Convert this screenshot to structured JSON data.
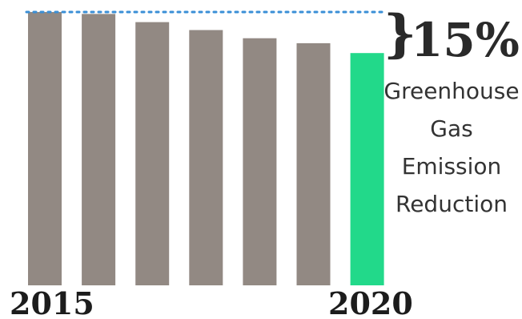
{
  "chart_data": {
    "type": "bar",
    "categories": [
      "2015",
      "",
      "",
      "",
      "",
      "",
      "2020"
    ],
    "values": [
      100,
      99.3,
      96.3,
      93.4,
      90.4,
      88.6,
      85
    ],
    "ylim": [
      0,
      100
    ],
    "grid": false,
    "baseline_value": 100,
    "tick_labels": {
      "first": "2015",
      "last": "2020"
    },
    "annotation": {
      "value_text": "15%",
      "lines": [
        "Greenhouse",
        "Gas",
        "Emission",
        "Reduction"
      ]
    }
  },
  "colors": {
    "bar": "#928983",
    "highlight_bar": "#22d98a",
    "baseline": "#3a8fd6",
    "text": "#2a2a2a"
  }
}
